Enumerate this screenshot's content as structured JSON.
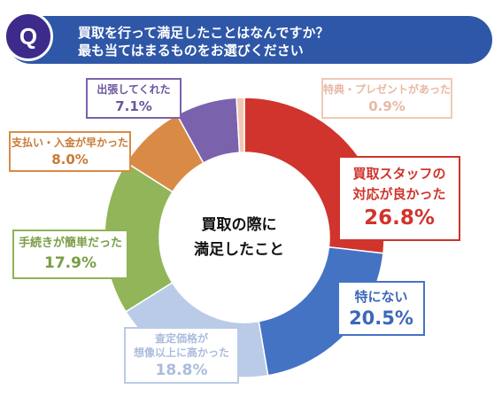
{
  "question": {
    "badge": "Q",
    "line1": "買取を行って満足したことはなんですか？",
    "line2": "最も当てはまるものをお選びください"
  },
  "center": {
    "line1": "買取の際に",
    "line2": "満足したこと"
  },
  "labels": {
    "staff": {
      "line1": "買取スタッフの",
      "line2": "対応が良かった",
      "pct": "26.8%"
    },
    "none": {
      "line1": "特にない",
      "pct": "20.5%"
    },
    "assess": {
      "line1": "査定価格が",
      "line2": "想像以上に高かった",
      "pct": "18.8%"
    },
    "proc": {
      "line1": "手続きが簡単だった",
      "pct": "17.9%"
    },
    "pay": {
      "line1": "支払い・入金が早かった",
      "pct": "8.0%"
    },
    "visit": {
      "line1": "出張してくれた",
      "pct": "7.1%"
    },
    "gift": {
      "line1": "特典・プレゼントがあった",
      "pct": "0.9%"
    }
  },
  "chart_data": {
    "type": "pie",
    "donut": true,
    "title": "",
    "slices": [
      {
        "key": "staff",
        "label": "買取スタッフの対応が良かった",
        "value": 26.8,
        "color": "#d0342c"
      },
      {
        "key": "none",
        "label": "特にない",
        "value": 20.5,
        "color": "#4573c4"
      },
      {
        "key": "assess",
        "label": "査定価格が想像以上に高かった",
        "value": 18.8,
        "color": "#b9cbe6"
      },
      {
        "key": "proc",
        "label": "手続きが簡単だった",
        "value": 17.9,
        "color": "#92b559"
      },
      {
        "key": "pay",
        "label": "支払い・入金が早かった",
        "value": 8.0,
        "color": "#d98b46"
      },
      {
        "key": "visit",
        "label": "出張してくれた",
        "value": 7.1,
        "color": "#7b62ad"
      },
      {
        "key": "gift",
        "label": "特典・プレゼントがあった",
        "value": 0.9,
        "color": "#f2c6b4"
      }
    ]
  }
}
